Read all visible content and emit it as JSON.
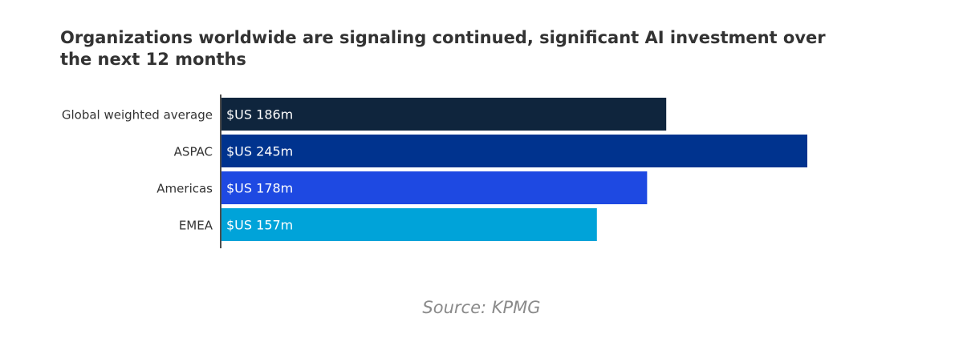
{
  "title": "Organizations worldwide are signaling continued, significant AI investment over the next 12 months",
  "source": "Source: KPMG",
  "chart_data": {
    "type": "bar",
    "orientation": "horizontal",
    "categories": [
      "Global weighted average",
      "ASPAC",
      "Americas",
      "EMEA"
    ],
    "values": [
      186,
      245,
      178,
      157
    ],
    "unit": "$US m",
    "data_labels": [
      "$US 186m",
      "$US 245m",
      "$US 178m",
      "$US 157m"
    ],
    "colors": [
      "#0f253d",
      "#00338e",
      "#1e49e2",
      "#00a3d9"
    ],
    "label_color": "#ffffff",
    "axis_color": "#222222",
    "category_label_color": "#333333",
    "xlim": [
      0,
      245
    ],
    "grid": false,
    "legend": false
  }
}
